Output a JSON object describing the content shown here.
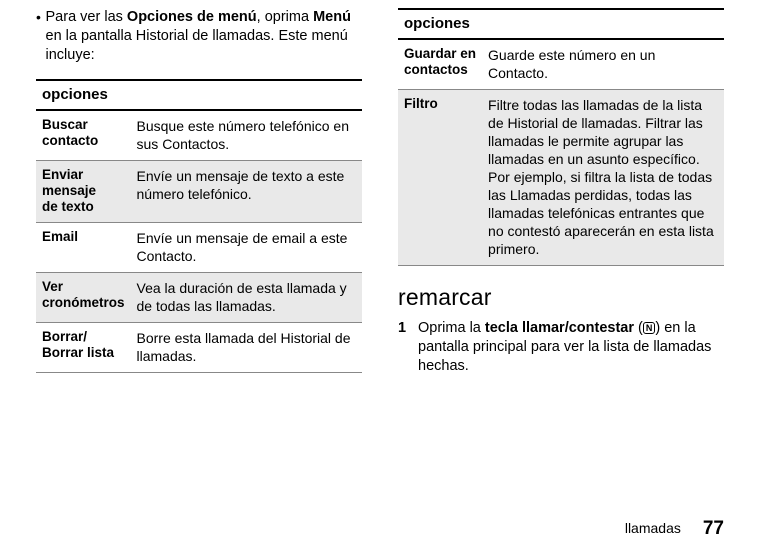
{
  "leftIntro": {
    "bullet": "•",
    "pre": "Para ver las ",
    "boldA": "Opciones de menú",
    "mid": ", oprima ",
    "boldB": "Menú",
    "post1": " en la pantalla Historial de llamadas.",
    "post2": "Este menú incluye:"
  },
  "tableHeader": "opciones",
  "leftRows": [
    {
      "key": "Buscar contacto",
      "desc": "Busque este número telefónico en sus Contactos."
    },
    {
      "key": "Enviar mensaje de texto",
      "desc": "Envíe un mensaje de texto a este número telefónico."
    },
    {
      "key": "Email",
      "desc": "Envíe un mensaje de email a este Contacto."
    },
    {
      "key": "Ver cronómetros",
      "desc": "Vea la duración de esta llamada y de todas las llamadas."
    },
    {
      "key": "Borrar/ Borrar lista",
      "desc": "Borre esta llamada del Historial de llamadas."
    }
  ],
  "rightRows": [
    {
      "key": "Guardar en contactos",
      "desc": "Guarde este número en un Contacto."
    },
    {
      "key": "Filtro",
      "desc": "Filtre todas las llamadas de la lista de Historial de llamadas. Filtrar las llamadas le permite agrupar las llamadas en un asunto específico. Por ejemplo, si filtra la lista de todas las Llamadas perdidas, todas las llamadas telefónicas entrantes que no contestó aparecerán en esta lista primero."
    }
  ],
  "section": {
    "title": "remarcar"
  },
  "step1": {
    "num": "1",
    "pre": "Oprima la ",
    "bold": "tecla llamar/contestar",
    "paren_open": " (",
    "icon": "N",
    "paren_close": ") en la pantalla principal para ver la lista de llamadas hechas."
  },
  "footer": {
    "label": "llamadas",
    "page": "77"
  }
}
